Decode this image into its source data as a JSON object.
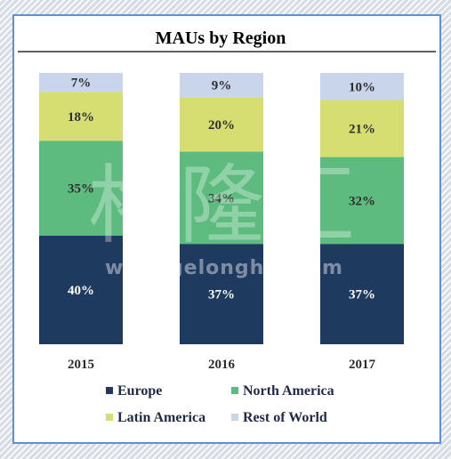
{
  "chart_data": {
    "type": "bar",
    "stacked": true,
    "title": "MAUs by Region",
    "categories": [
      "2015",
      "2016",
      "2017"
    ],
    "series": [
      {
        "name": "Europe",
        "color": "#1f3a5f",
        "values": [
          40,
          37,
          37
        ],
        "labels": [
          "40%",
          "37%",
          "37%"
        ]
      },
      {
        "name": "North America",
        "color": "#5dbb7f",
        "values": [
          35,
          34,
          32
        ],
        "labels": [
          "35%",
          "34%",
          "32%"
        ]
      },
      {
        "name": "Latin America",
        "color": "#d6de72",
        "values": [
          18,
          20,
          21
        ],
        "labels": [
          "18%",
          "20%",
          "21%"
        ]
      },
      {
        "name": "Rest of World",
        "color": "#c8d5ea",
        "values": [
          7,
          9,
          10
        ],
        "labels": [
          "7%",
          "9%",
          "10%"
        ]
      }
    ],
    "ylim": [
      0,
      100
    ],
    "legend": "bottom"
  },
  "watermark": {
    "text_cn": "格隆汇",
    "url": "www.gelonghui.com"
  }
}
